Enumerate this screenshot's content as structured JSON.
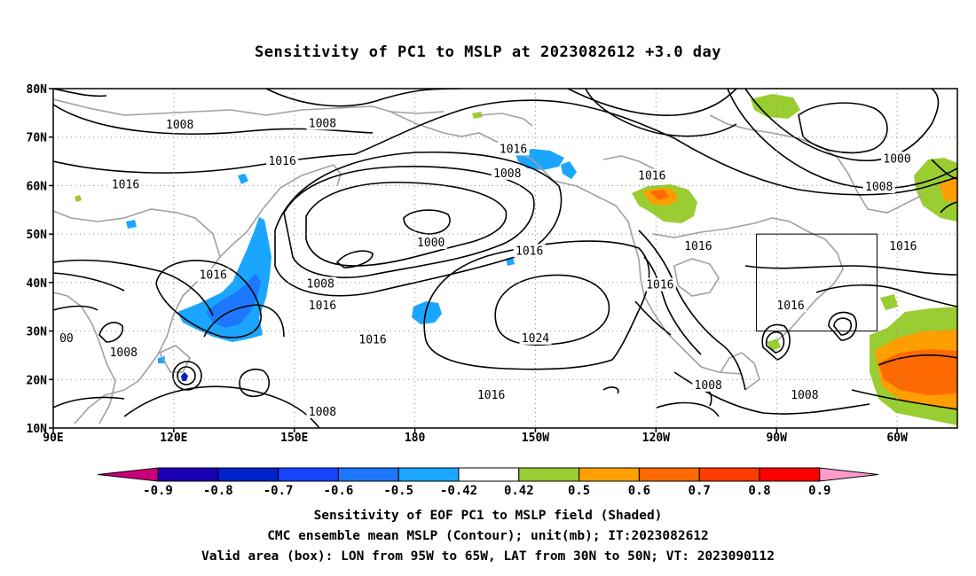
{
  "title": "Sensitivity of PC1 to MSLP at 2023082612 +3.0 day",
  "lat_labels": [
    "80N",
    "70N",
    "60N",
    "50N",
    "40N",
    "30N",
    "20N",
    "10N"
  ],
  "lon_labels": [
    "90E",
    "120E",
    "150E",
    "180",
    "150W",
    "120W",
    "90W",
    "60W"
  ],
  "extent": {
    "lon_min": 90,
    "lon_max": 315,
    "lat_min": 10,
    "lat_max": 80
  },
  "valid_box": {
    "lon": [
      265,
      295
    ],
    "lat": [
      30,
      50
    ]
  },
  "contour_labels": [
    {
      "text": "1008",
      "lon": 121.5,
      "lat": 72.5
    },
    {
      "text": "1008",
      "lon": 157,
      "lat": 72.8
    },
    {
      "text": "1016",
      "lon": 147,
      "lat": 65
    },
    {
      "text": "1016",
      "lon": 108,
      "lat": 60.2
    },
    {
      "text": "1016",
      "lon": 204.5,
      "lat": 67.5
    },
    {
      "text": "1008",
      "lon": 203,
      "lat": 62.5
    },
    {
      "text": "1016",
      "lon": 239,
      "lat": 62
    },
    {
      "text": "1000",
      "lon": 300,
      "lat": 65.5
    },
    {
      "text": "1008",
      "lon": 295.5,
      "lat": 59.7
    },
    {
      "text": "1000",
      "lon": 184,
      "lat": 48.2
    },
    {
      "text": "1016",
      "lon": 129.8,
      "lat": 41.5
    },
    {
      "text": "1008",
      "lon": 156.5,
      "lat": 39.7
    },
    {
      "text": "1016",
      "lon": 157,
      "lat": 35.2
    },
    {
      "text": "1016",
      "lon": 208.5,
      "lat": 46.5
    },
    {
      "text": "1016",
      "lon": 250.5,
      "lat": 47.5
    },
    {
      "text": "1016",
      "lon": 301.5,
      "lat": 47.5
    },
    {
      "text": "1016",
      "lon": 241,
      "lat": 39.5
    },
    {
      "text": "1016",
      "lon": 273.5,
      "lat": 35.2
    },
    {
      "text": "1016",
      "lon": 169.5,
      "lat": 28.2
    },
    {
      "text": "1024",
      "lon": 210,
      "lat": 28.5
    },
    {
      "text": "00",
      "lon": 93.3,
      "lat": 28.5
    },
    {
      "text": "1008",
      "lon": 107.5,
      "lat": 25.5
    },
    {
      "text": "1016",
      "lon": 199,
      "lat": 16.8
    },
    {
      "text": "1008",
      "lon": 253,
      "lat": 18.8
    },
    {
      "text": "1008",
      "lon": 277,
      "lat": 16.8
    },
    {
      "text": "1008",
      "lon": 157,
      "lat": 13.3
    }
  ],
  "colorbar": {
    "labels": [
      "-0.9",
      "-0.8",
      "-0.7",
      "-0.6",
      "-0.5",
      "-0.42",
      "0.42",
      "0.5",
      "0.6",
      "0.7",
      "0.8",
      "0.9"
    ],
    "colors": [
      "#1a00b4",
      "#0022cc",
      "#1744ff",
      "#1e78ff",
      "#1aa6ff",
      "#ffffff",
      "#9acd32",
      "#ff9e00",
      "#ff6a00",
      "#ff3c00",
      "#ff0000"
    ],
    "low_extend_color": "#c8007a",
    "high_extend_color": "#ff9ccc"
  },
  "shading_colors": {
    "blue_light": "#1aa6ff",
    "blue_mid": "#1e78ff",
    "blue_dark": "#0022cc",
    "green": "#9acd32",
    "orange": "#ff9e00",
    "orange_dark": "#ff6a00",
    "contour": "#000000",
    "coast": "#a0a0a0"
  },
  "captions": [
    "Sensitivity of EOF PC1 to MSLP field (Shaded)",
    "CMC ensemble mean MSLP (Contour); unit(mb); IT:2023082612",
    "Valid area (box): LON from 95W to 65W, LAT from 30N to 50N; VT: 2023090112"
  ]
}
